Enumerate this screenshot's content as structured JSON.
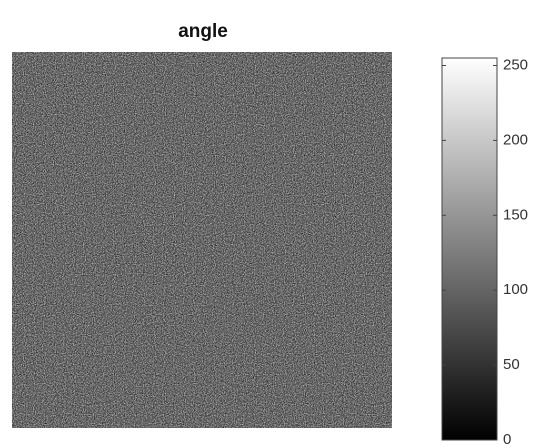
{
  "chart_data": {
    "type": "image",
    "title": "angle",
    "colormap": "gray",
    "clim": [
      0,
      255
    ],
    "cticks": [
      0,
      50,
      100,
      150,
      200,
      250
    ]
  }
}
